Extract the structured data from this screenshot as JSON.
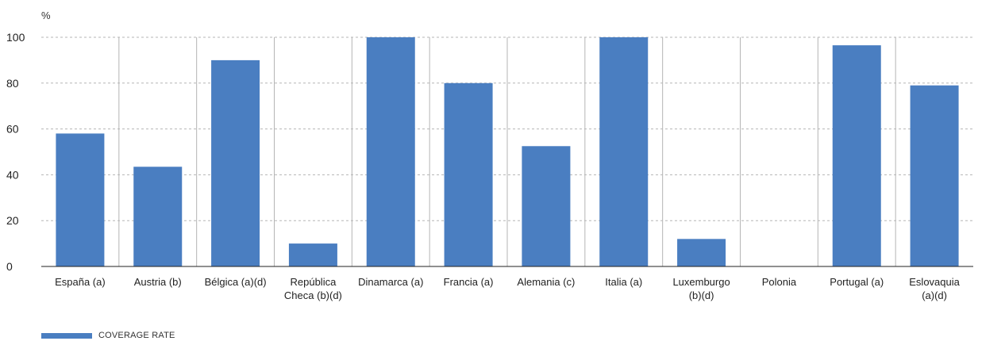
{
  "chart_data": {
    "type": "bar",
    "unit_label": "%",
    "categories": [
      [
        "España (a)"
      ],
      [
        "Austria (b)"
      ],
      [
        "Bélgica (a)(d)"
      ],
      [
        "República",
        "Checa (b)(d)"
      ],
      [
        "Dinamarca (a)"
      ],
      [
        "Francia (a)"
      ],
      [
        "Alemania (c)"
      ],
      [
        "Italia (a)"
      ],
      [
        "Luxemburgo",
        "(b)(d)"
      ],
      [
        "Polonia"
      ],
      [
        "Portugal (a)"
      ],
      [
        "Eslovaquia",
        "(a)(d)"
      ]
    ],
    "series": [
      {
        "name": "COVERAGE RATE",
        "values": [
          58,
          43.5,
          90,
          10,
          100,
          80,
          52.5,
          100,
          12,
          0,
          96.5,
          79
        ]
      }
    ],
    "ylim": [
      0,
      100
    ],
    "yticks": [
      0,
      20,
      40,
      60,
      80,
      100
    ],
    "grid": true,
    "legend_position": "bottom-left"
  },
  "colors": {
    "bar": "#4a7ec1",
    "grid": "#b5b5b5",
    "axis": "#222222"
  }
}
